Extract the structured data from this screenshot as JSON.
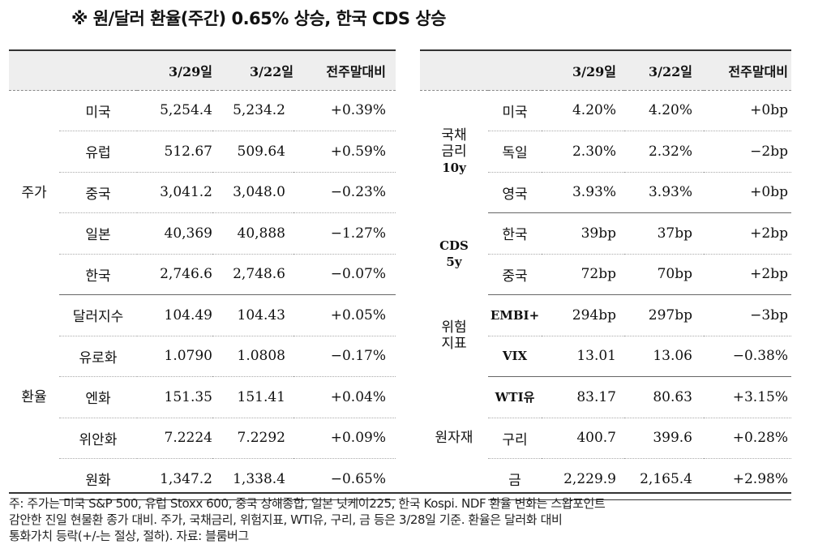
{
  "title": "※ 원/달러 환율(주간) 0.65% 상승, 한국 CDS 상승",
  "left_table": {
    "headers": [
      "",
      "",
      "3/29일",
      "3/22일",
      "전주말대비"
    ],
    "groups": [
      {
        "label": "주가",
        "rows": [
          {
            "name": "미국",
            "cur": "5,254.4",
            "prev": "5,234.2",
            "chg": "+0.39%"
          },
          {
            "name": "유럽",
            "cur": "512.67",
            "prev": "509.64",
            "chg": "+0.59%"
          },
          {
            "name": "중국",
            "cur": "3,041.2",
            "prev": "3,048.0",
            "chg": "−0.23%"
          },
          {
            "name": "일본",
            "cur": "40,369",
            "prev": "40,888",
            "chg": "−1.27%"
          },
          {
            "name": "한국",
            "cur": "2,746.6",
            "prev": "2,748.6",
            "chg": "−0.07%"
          }
        ]
      },
      {
        "label": "환율",
        "rows": [
          {
            "name": "달러지수",
            "cur": "104.49",
            "prev": "104.43",
            "chg": "+0.05%"
          },
          {
            "name": "유로화",
            "cur": "1.0790",
            "prev": "1.0808",
            "chg": "−0.17%"
          },
          {
            "name": "엔화",
            "cur": "151.35",
            "prev": "151.41",
            "chg": "+0.04%"
          },
          {
            "name": "위안화",
            "cur": "7.2224",
            "prev": "7.2292",
            "chg": "+0.09%"
          },
          {
            "name": "원화",
            "cur": "1,347.2",
            "prev": "1,338.4",
            "chg": "−0.65%"
          }
        ]
      }
    ]
  },
  "right_table": {
    "headers": [
      "",
      "",
      "3/29일",
      "3/22일",
      "전주말대비"
    ],
    "groups": [
      {
        "label_lines": [
          "국채",
          "금리",
          "10y"
        ],
        "rows": [
          {
            "name": "미국",
            "cur": "4.20%",
            "prev": "4.20%",
            "chg": "+0bp"
          },
          {
            "name": "독일",
            "cur": "2.30%",
            "prev": "2.32%",
            "chg": "−2bp"
          },
          {
            "name": "영국",
            "cur": "3.93%",
            "prev": "3.93%",
            "chg": "+0bp"
          }
        ]
      },
      {
        "label_lines": [
          "CDS",
          "5y"
        ],
        "rows": [
          {
            "name": "한국",
            "cur": "39bp",
            "prev": "37bp",
            "chg": "+2bp"
          },
          {
            "name": "중국",
            "cur": "72bp",
            "prev": "70bp",
            "chg": "+2bp"
          }
        ]
      },
      {
        "label_lines": [
          "위험",
          "지표"
        ],
        "rows": [
          {
            "name": "EMBI+",
            "cur": "294bp",
            "prev": "297bp",
            "chg": "−3bp"
          },
          {
            "name": "VIX",
            "cur": "13.01",
            "prev": "13.06",
            "chg": "−0.38%"
          }
        ]
      },
      {
        "label_lines": [
          "원자재"
        ],
        "rows": [
          {
            "name": "WTI유",
            "cur": "83.17",
            "prev": "80.63",
            "chg": "+3.15%"
          },
          {
            "name": "구리",
            "cur": "400.7",
            "prev": "399.6",
            "chg": "+0.28%"
          },
          {
            "name": "금",
            "cur": "2,229.9",
            "prev": "2,165.4",
            "chg": "+2.98%"
          }
        ]
      }
    ]
  },
  "footnote": {
    "line1": "주: 주가는 미국 S&P 500, 유럽 Stoxx 600, 중국 상해종합, 일본 닛케이225, 한국 Kospi. NDF 환율 변화는 스왑포인트",
    "line2": "감안한 진일 현물환 종가 대비. 주가, 국채금리, 위험지표, WTI유, 구리, 금 등은 3/28일 기준. 환율은 달러화 대비",
    "line3": "통화가치 등락(+/-는 절상, 절하). 자료: 블룸버그"
  }
}
